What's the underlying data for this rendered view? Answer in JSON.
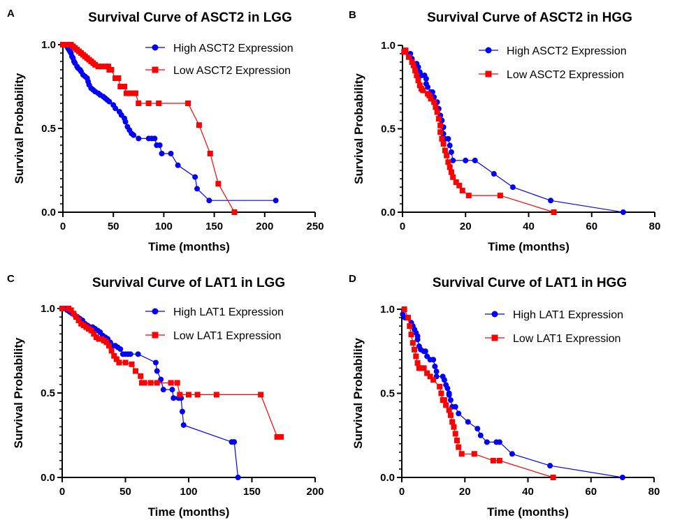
{
  "colors": {
    "high": "#0000FF",
    "low": "#FF0000",
    "axis": "#000000"
  },
  "chart_data": [
    {
      "type": "line",
      "panel": "A",
      "title": "Survival Curve of ASCT2 in LGG",
      "xlabel": "Time (months)",
      "ylabel": "Survival Probability",
      "xlim": [
        0,
        250
      ],
      "ylim": [
        0,
        1.0
      ],
      "xticks": [
        0,
        50,
        100,
        150,
        200,
        250
      ],
      "yticks": [
        0.0,
        0.5,
        1.0
      ],
      "xtick_labels": [
        "0",
        "50",
        "100",
        "150",
        "200",
        "250"
      ],
      "ytick_labels": [
        "0.0",
        "0.5",
        "1.0"
      ],
      "legend": "top-right",
      "series": [
        {
          "name": "High ASCT2 Expression",
          "color": "#0000FF",
          "marker": "circle",
          "x": [
            0,
            2,
            3,
            4,
            5,
            6,
            7,
            8,
            9,
            10,
            11,
            12,
            14,
            15,
            17,
            18,
            20,
            22,
            24,
            25,
            26,
            28,
            30,
            32,
            35,
            37,
            40,
            42,
            44,
            46,
            50,
            52,
            56,
            58,
            61,
            62,
            64,
            66,
            68,
            70,
            75,
            85,
            88,
            91,
            93,
            96,
            98,
            107,
            114,
            131,
            133,
            145,
            211
          ],
          "y": [
            1.0,
            1.0,
            1.0,
            0.99,
            0.98,
            0.97,
            0.96,
            0.95,
            0.93,
            0.92,
            0.9,
            0.89,
            0.87,
            0.86,
            0.85,
            0.84,
            0.82,
            0.81,
            0.8,
            0.78,
            0.76,
            0.74,
            0.73,
            0.72,
            0.71,
            0.7,
            0.69,
            0.68,
            0.67,
            0.66,
            0.64,
            0.62,
            0.6,
            0.58,
            0.56,
            0.54,
            0.51,
            0.49,
            0.47,
            0.46,
            0.44,
            0.44,
            0.44,
            0.44,
            0.4,
            0.4,
            0.35,
            0.35,
            0.28,
            0.21,
            0.14,
            0.07,
            0.07
          ]
        },
        {
          "name": "Low ASCT2 Expression",
          "color": "#FF0000",
          "marker": "square",
          "x": [
            0,
            5,
            8,
            10,
            12,
            14,
            16,
            18,
            20,
            22,
            24,
            26,
            28,
            30,
            32,
            35,
            38,
            42,
            45,
            46,
            48,
            52,
            55,
            57,
            61,
            63,
            66,
            70,
            72,
            75,
            85,
            95,
            124,
            135,
            146,
            154,
            170
          ],
          "y": [
            1.0,
            1.0,
            1.0,
            0.99,
            0.98,
            0.97,
            0.96,
            0.95,
            0.94,
            0.93,
            0.92,
            0.91,
            0.9,
            0.89,
            0.88,
            0.87,
            0.87,
            0.87,
            0.87,
            0.85,
            0.85,
            0.8,
            0.8,
            0.75,
            0.75,
            0.71,
            0.71,
            0.71,
            0.71,
            0.65,
            0.65,
            0.65,
            0.65,
            0.52,
            0.35,
            0.17,
            0.0
          ]
        }
      ]
    },
    {
      "type": "line",
      "panel": "B",
      "title": "Survival Curve of ASCT2 in HGG",
      "xlabel": "Time (months)",
      "ylabel": "Survival Probability",
      "xlim": [
        0,
        80
      ],
      "ylim": [
        0,
        1.0
      ],
      "xticks": [
        0,
        20,
        40,
        60,
        80
      ],
      "yticks": [
        0.0,
        0.5,
        1.0
      ],
      "xtick_labels": [
        "0",
        "20",
        "40",
        "60",
        "80"
      ],
      "ytick_labels": [
        "0.0",
        "0.5",
        "1.0"
      ],
      "legend": "top-right",
      "series": [
        {
          "name": "High ASCT2 Expression",
          "color": "#0000FF",
          "marker": "circle",
          "x": [
            0.5,
            2.5,
            3,
            4.5,
            5,
            5.5,
            6,
            7,
            7.5,
            7.5,
            8,
            9,
            9.5,
            10,
            11,
            11.5,
            12,
            12.5,
            13,
            13,
            13.5,
            14.5,
            15,
            15.5,
            16,
            20,
            23,
            29,
            35,
            47,
            70
          ],
          "y": [
            0.97,
            0.95,
            0.92,
            0.89,
            0.87,
            0.84,
            0.82,
            0.82,
            0.8,
            0.77,
            0.75,
            0.72,
            0.72,
            0.69,
            0.66,
            0.62,
            0.58,
            0.55,
            0.51,
            0.47,
            0.44,
            0.44,
            0.4,
            0.36,
            0.31,
            0.31,
            0.31,
            0.23,
            0.15,
            0.07,
            0.0
          ]
        },
        {
          "name": "Low ASCT2 Expression",
          "color": "#FF0000",
          "marker": "square",
          "x": [
            0.5,
            1,
            2,
            3,
            3.5,
            4,
            4.5,
            5,
            5.5,
            6,
            6.5,
            8,
            8.5,
            9,
            10,
            10.5,
            11,
            11.5,
            12,
            12,
            12.5,
            13,
            13.5,
            14,
            14.5,
            15,
            15.5,
            16,
            17,
            18,
            19,
            21,
            31,
            48
          ],
          "y": [
            0.96,
            0.97,
            0.93,
            0.9,
            0.88,
            0.85,
            0.82,
            0.79,
            0.76,
            0.74,
            0.73,
            0.71,
            0.7,
            0.68,
            0.66,
            0.63,
            0.6,
            0.56,
            0.52,
            0.48,
            0.44,
            0.41,
            0.37,
            0.34,
            0.3,
            0.27,
            0.24,
            0.21,
            0.18,
            0.16,
            0.13,
            0.1,
            0.1,
            0.0
          ]
        }
      ]
    },
    {
      "type": "line",
      "panel": "C",
      "title": "Survival Curve of LAT1 in LGG",
      "xlabel": "Time (months)",
      "ylabel": "Survival Probability",
      "xlim": [
        0,
        200
      ],
      "ylim": [
        0,
        1.0
      ],
      "xticks": [
        0,
        50,
        100,
        150,
        200
      ],
      "yticks": [
        0.0,
        0.5,
        1.0
      ],
      "xtick_labels": [
        "0",
        "50",
        "100",
        "150",
        "200"
      ],
      "ytick_labels": [
        "0.0",
        "0.5",
        "1.0"
      ],
      "legend": "top-right",
      "series": [
        {
          "name": "High LAT1 Expression",
          "color": "#0000FF",
          "marker": "circle",
          "x": [
            0,
            2,
            4,
            6,
            8,
            10,
            12,
            14,
            16,
            18,
            20,
            22,
            24,
            26,
            28,
            30,
            32,
            34,
            36,
            38,
            40,
            42,
            44,
            46,
            48,
            50,
            52,
            54,
            60,
            74,
            75,
            78,
            80,
            87,
            88,
            92,
            94,
            95,
            96,
            134,
            136,
            139
          ],
          "y": [
            1.0,
            1.0,
            0.99,
            0.98,
            0.97,
            0.96,
            0.95,
            0.94,
            0.93,
            0.91,
            0.9,
            0.89,
            0.89,
            0.88,
            0.87,
            0.86,
            0.84,
            0.83,
            0.82,
            0.8,
            0.78,
            0.78,
            0.77,
            0.76,
            0.73,
            0.73,
            0.73,
            0.73,
            0.73,
            0.68,
            0.63,
            0.58,
            0.52,
            0.52,
            0.47,
            0.47,
            0.47,
            0.39,
            0.31,
            0.21,
            0.21,
            0.0
          ]
        },
        {
          "name": "Low LAT1 Expression",
          "color": "#FF0000",
          "marker": "square",
          "x": [
            0,
            5,
            7,
            9,
            11,
            13,
            15,
            17,
            19,
            21,
            23,
            25,
            27,
            29,
            31,
            33,
            35,
            37,
            39,
            41,
            43,
            45,
            50,
            55,
            58,
            62,
            63,
            65,
            70,
            75,
            86,
            91,
            93,
            100,
            107,
            122,
            157,
            170,
            173
          ],
          "y": [
            1.0,
            1.0,
            0.99,
            0.97,
            0.95,
            0.93,
            0.91,
            0.9,
            0.89,
            0.88,
            0.87,
            0.85,
            0.83,
            0.82,
            0.82,
            0.81,
            0.8,
            0.78,
            0.75,
            0.72,
            0.7,
            0.68,
            0.68,
            0.67,
            0.63,
            0.6,
            0.56,
            0.56,
            0.56,
            0.56,
            0.56,
            0.56,
            0.49,
            0.49,
            0.49,
            0.49,
            0.49,
            0.24,
            0.24
          ]
        }
      ]
    },
    {
      "type": "line",
      "panel": "D",
      "title": "Survival Curve of LAT1 in HGG",
      "xlabel": "Time (months)",
      "ylabel": "Survival Probability",
      "xlim": [
        0,
        80
      ],
      "ylim": [
        0,
        1.0
      ],
      "xticks": [
        0,
        20,
        40,
        60,
        80
      ],
      "yticks": [
        0.0,
        0.5,
        1.0
      ],
      "xtick_labels": [
        "0",
        "20",
        "40",
        "60",
        "80"
      ],
      "ytick_labels": [
        "0.0",
        "0.5",
        "1.0"
      ],
      "legend": "top-right",
      "series": [
        {
          "name": "High LAT1 Expression",
          "color": "#0000FF",
          "marker": "circle",
          "x": [
            0.3,
            1,
            3,
            3.5,
            4,
            4.5,
            5,
            5,
            5.5,
            6,
            7,
            7.5,
            8,
            9,
            10,
            10.5,
            11,
            11,
            13,
            13.5,
            14,
            14.5,
            15,
            15,
            15.5,
            16,
            17,
            18,
            21,
            24,
            25,
            27,
            30,
            31,
            35,
            47,
            70
          ],
          "y": [
            0.97,
            0.95,
            0.92,
            0.9,
            0.88,
            0.86,
            0.84,
            0.82,
            0.78,
            0.76,
            0.75,
            0.75,
            0.72,
            0.7,
            0.7,
            0.66,
            0.63,
            0.6,
            0.6,
            0.58,
            0.55,
            0.53,
            0.5,
            0.49,
            0.46,
            0.42,
            0.42,
            0.38,
            0.33,
            0.29,
            0.25,
            0.21,
            0.21,
            0.21,
            0.14,
            0.07,
            0.0
          ]
        },
        {
          "name": "Low LAT1 Expression",
          "color": "#FF0000",
          "marker": "square",
          "x": [
            0.8,
            2,
            2.5,
            3,
            3.5,
            4,
            4.5,
            5,
            5.5,
            6,
            7,
            8,
            9,
            10,
            12,
            12.5,
            13,
            13.5,
            14,
            15,
            15.5,
            16,
            16.5,
            17,
            17.5,
            18,
            19,
            23,
            29,
            31,
            48
          ],
          "y": [
            1.0,
            0.95,
            0.9,
            0.85,
            0.8,
            0.76,
            0.72,
            0.68,
            0.65,
            0.65,
            0.65,
            0.62,
            0.6,
            0.58,
            0.54,
            0.5,
            0.46,
            0.46,
            0.43,
            0.4,
            0.37,
            0.33,
            0.3,
            0.26,
            0.22,
            0.18,
            0.14,
            0.14,
            0.1,
            0.1,
            0.0
          ]
        }
      ]
    }
  ]
}
